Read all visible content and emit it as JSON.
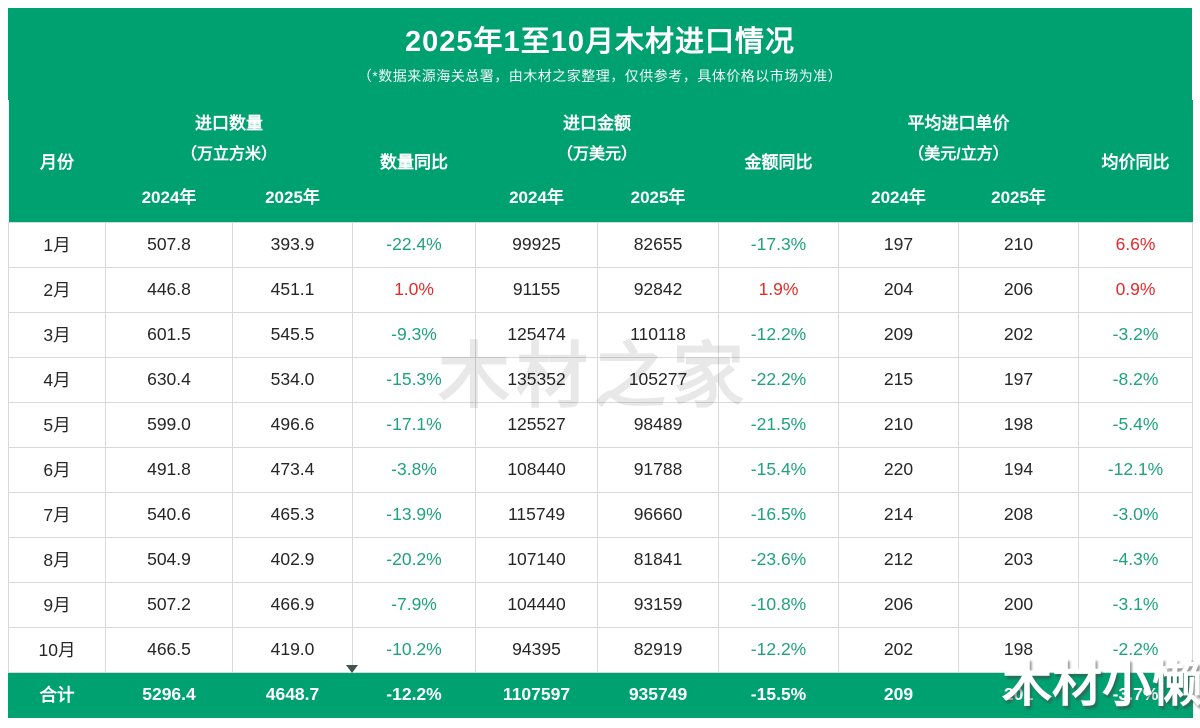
{
  "header": {
    "title": "2025年1至10月木材进口情况",
    "subtitle": "（*数据来源海关总署，由木材之家整理，仅供参考，具体价格以市场为准）"
  },
  "columns": {
    "month": "月份",
    "quantity": {
      "label": "进口数量",
      "unit": "（万立方米）"
    },
    "quantity_yoy": "数量同比",
    "amount": {
      "label": "进口金额",
      "unit": "（万美元）"
    },
    "amount_yoy": "金额同比",
    "price": {
      "label": "平均进口单价",
      "unit": "（美元/立方）"
    },
    "price_yoy": "均价同比",
    "year_2024": "2024年",
    "year_2025": "2025年"
  },
  "rows": [
    [
      "1月",
      "507.8",
      "393.9",
      "-22.4%",
      "99925",
      "82655",
      "-17.3%",
      "197",
      "210",
      "6.6%"
    ],
    [
      "2月",
      "446.8",
      "451.1",
      "1.0%",
      "91155",
      "92842",
      "1.9%",
      "204",
      "206",
      "0.9%"
    ],
    [
      "3月",
      "601.5",
      "545.5",
      "-9.3%",
      "125474",
      "110118",
      "-12.2%",
      "209",
      "202",
      "-3.2%"
    ],
    [
      "4月",
      "630.4",
      "534.0",
      "-15.3%",
      "135352",
      "105277",
      "-22.2%",
      "215",
      "197",
      "-8.2%"
    ],
    [
      "5月",
      "599.0",
      "496.6",
      "-17.1%",
      "125527",
      "98489",
      "-21.5%",
      "210",
      "198",
      "-5.4%"
    ],
    [
      "6月",
      "491.8",
      "473.4",
      "-3.8%",
      "108440",
      "91788",
      "-15.4%",
      "220",
      "194",
      "-12.1%"
    ],
    [
      "7月",
      "540.6",
      "465.3",
      "-13.9%",
      "115749",
      "96660",
      "-16.5%",
      "214",
      "208",
      "-3.0%"
    ],
    [
      "8月",
      "504.9",
      "402.9",
      "-20.2%",
      "107140",
      "81841",
      "-23.6%",
      "212",
      "203",
      "-4.3%"
    ],
    [
      "9月",
      "507.2",
      "466.9",
      "-7.9%",
      "104440",
      "93159",
      "-10.8%",
      "206",
      "200",
      "-3.1%"
    ],
    [
      "10月",
      "466.5",
      "419.0",
      "-10.2%",
      "94395",
      "82919",
      "-12.2%",
      "202",
      "198",
      "-2.2%"
    ]
  ],
  "total": [
    "合计",
    "5296.4",
    "4648.7",
    "-12.2%",
    "1107597",
    "935749",
    "-15.5%",
    "209",
    "201",
    "-3.7%"
  ],
  "watermarks": {
    "center": "木材之家",
    "corner": "木材小懒"
  },
  "colors": {
    "brand_green": "#00a171",
    "yoy_down": "#1fa27e",
    "yoy_up": "#e62a2a",
    "grid_line": "#d9d9d9"
  }
}
